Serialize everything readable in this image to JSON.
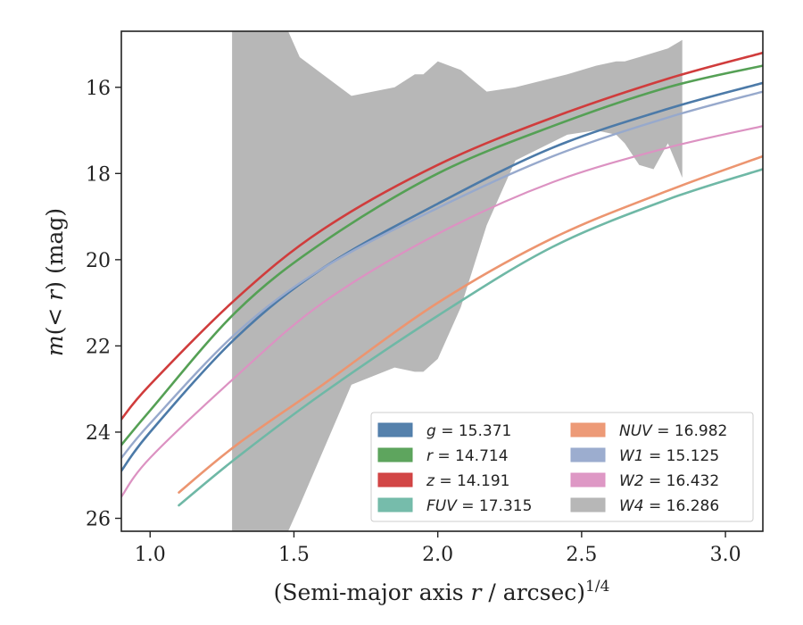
{
  "chart_data": {
    "type": "line",
    "title": "",
    "xlabel_main": "(Semi-major axis ",
    "xlabel_var": "r",
    "xlabel_unit": " / arcsec)",
    "xlabel_exp": "1/4",
    "ylabel_pre": "m(< ",
    "ylabel_var": "r",
    "ylabel_post": ") (mag)",
    "xlim": [
      0.9,
      3.13
    ],
    "ylim": [
      26.3,
      14.7
    ],
    "y_inverted": true,
    "xticks": [
      1.0,
      1.5,
      2.0,
      2.5,
      3.0
    ],
    "xtick_labels": [
      "1.0",
      "1.5",
      "2.0",
      "2.5",
      "3.0"
    ],
    "yticks": [
      16,
      18,
      20,
      22,
      24,
      26
    ],
    "ytick_labels": [
      "16",
      "18",
      "20",
      "22",
      "24",
      "26"
    ],
    "grid": false,
    "legend_placement": "lower-right",
    "series": [
      {
        "key": "g",
        "label_var": "g",
        "label_value": "= 15.371",
        "color": "#4c7aa8",
        "x": [
          0.9,
          1.0,
          1.3,
          1.6,
          2.0,
          2.4,
          2.8,
          3.13
        ],
        "y": [
          24.9,
          24.0,
          21.8,
          20.2,
          18.7,
          17.4,
          16.5,
          15.9
        ],
        "width": 2.6
      },
      {
        "key": "r",
        "label_var": "r",
        "label_value": "= 14.714",
        "color": "#55a055",
        "x": [
          0.9,
          1.0,
          1.3,
          1.6,
          2.0,
          2.4,
          2.8,
          3.13
        ],
        "y": [
          24.3,
          23.5,
          21.2,
          19.6,
          18.0,
          16.9,
          16.0,
          15.5
        ],
        "width": 2.6
      },
      {
        "key": "z",
        "label_var": "z",
        "label_value": "= 14.191",
        "color": "#d03c3c",
        "x": [
          0.9,
          1.0,
          1.3,
          1.6,
          2.0,
          2.4,
          2.8,
          3.13
        ],
        "y": [
          23.7,
          22.9,
          20.9,
          19.3,
          17.8,
          16.7,
          15.8,
          15.2
        ],
        "width": 2.6
      },
      {
        "key": "FUV",
        "label_var": "FUV",
        "label_value": "= 17.315",
        "color": "#6fb8a6",
        "x": [
          1.1,
          1.3,
          1.6,
          2.0,
          2.4,
          2.8,
          3.13
        ],
        "y": [
          25.7,
          24.6,
          23.1,
          21.3,
          19.7,
          18.6,
          17.9
        ],
        "width": 2.6
      },
      {
        "key": "NUV",
        "label_var": "NUV",
        "label_value": "= 16.982",
        "color": "#ec9570",
        "x": [
          1.1,
          1.3,
          1.6,
          2.0,
          2.4,
          2.8,
          3.13
        ],
        "y": [
          25.4,
          24.3,
          22.9,
          21.0,
          19.5,
          18.4,
          17.6
        ],
        "width": 2.6
      },
      {
        "key": "W1",
        "label_var": "W1",
        "label_value": "= 15.125",
        "color": "#97a9cc",
        "x": [
          0.9,
          1.0,
          1.3,
          1.6,
          2.0,
          2.4,
          2.8,
          3.13
        ],
        "y": [
          24.6,
          23.8,
          21.7,
          20.2,
          18.8,
          17.6,
          16.7,
          16.1
        ],
        "width": 2.4
      },
      {
        "key": "W2",
        "label_var": "W2",
        "label_value": "= 16.432",
        "color": "#dc92c2",
        "x": [
          0.9,
          1.0,
          1.3,
          1.6,
          2.0,
          2.4,
          2.8,
          3.13
        ],
        "y": [
          25.5,
          24.6,
          22.7,
          21.0,
          19.4,
          18.2,
          17.4,
          16.9
        ],
        "width": 2.2
      },
      {
        "key": "W4",
        "label_var": "W4",
        "label_value": "= 16.286",
        "color": "#b3b3b3",
        "band_x": [
          1.285,
          1.29,
          1.4,
          1.48,
          1.52,
          1.7,
          1.85,
          1.92,
          1.95,
          2.0,
          2.08,
          2.17,
          2.27,
          2.45,
          2.55,
          2.62,
          2.65,
          2.7,
          2.75,
          2.8,
          2.85
        ],
        "band_upper": [
          14.7,
          14.7,
          14.7,
          14.7,
          15.3,
          16.2,
          16.0,
          15.7,
          15.7,
          15.4,
          15.6,
          16.1,
          16.0,
          15.7,
          15.5,
          15.4,
          15.4,
          15.3,
          15.2,
          15.1,
          14.9
        ],
        "band_lower": [
          26.3,
          26.3,
          26.3,
          26.3,
          25.7,
          22.9,
          22.5,
          22.6,
          22.6,
          22.3,
          21.1,
          19.2,
          17.7,
          17.1,
          17.0,
          17.1,
          17.3,
          17.8,
          17.9,
          17.3,
          18.1
        ]
      }
    ]
  }
}
